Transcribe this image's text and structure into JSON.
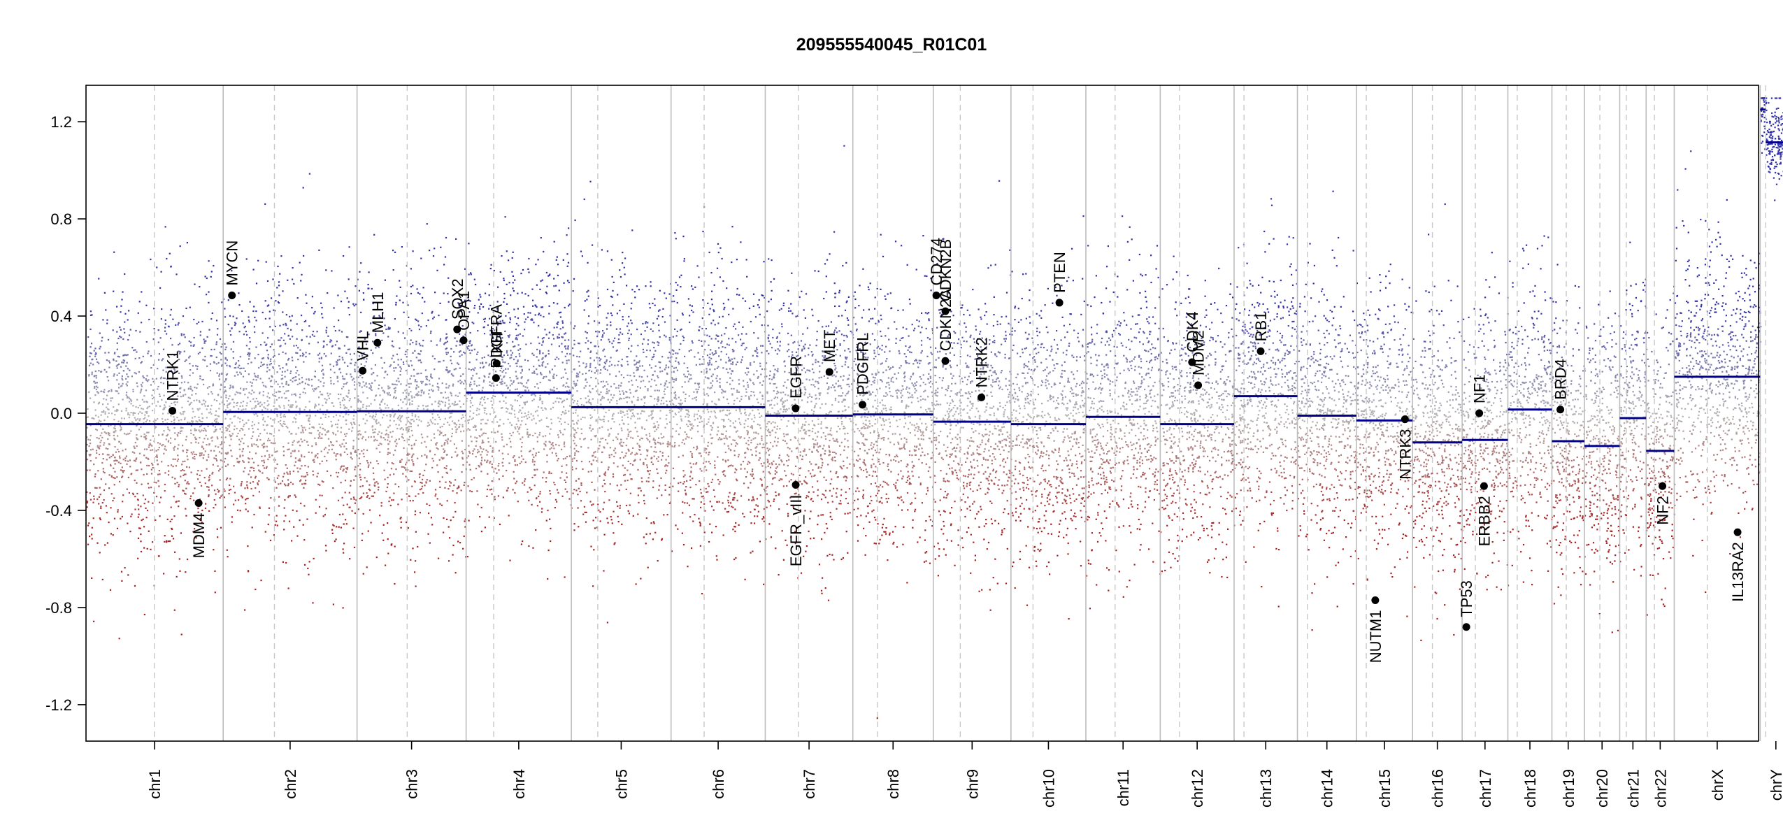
{
  "chart_data": {
    "type": "scatter",
    "title": "209555540045_R01C01",
    "xlabel": "",
    "ylabel": "",
    "ylim": [
      -1.35,
      1.35
    ],
    "yticks": [
      1.2,
      0.8,
      0.4,
      0.0,
      -0.4,
      -0.8,
      -1.2
    ],
    "ytick_labels": [
      "1.2",
      "0.8",
      "0.4",
      "0.0",
      "-0.4",
      "-0.8",
      "-1.2"
    ],
    "grid": false,
    "xlim_mb": [
      0,
      3036
    ],
    "chromosomes": [
      {
        "name": "chr1",
        "length": 249,
        "centromere": 124,
        "segments": [
          {
            "start": 0,
            "end": 249,
            "value": -0.045
          }
        ]
      },
      {
        "name": "chr2",
        "length": 243,
        "centromere": 93,
        "segments": [
          {
            "start": 0,
            "end": 243,
            "value": 0.005
          }
        ]
      },
      {
        "name": "chr3",
        "length": 198,
        "centromere": 91,
        "segments": [
          {
            "start": 0,
            "end": 198,
            "value": 0.008
          }
        ]
      },
      {
        "name": "chr4",
        "length": 191,
        "centromere": 50,
        "segments": [
          {
            "start": 0,
            "end": 191,
            "value": 0.085
          }
        ]
      },
      {
        "name": "chr5",
        "length": 181,
        "centromere": 48,
        "segments": [
          {
            "start": 0,
            "end": 181,
            "value": 0.025
          }
        ]
      },
      {
        "name": "chr6",
        "length": 171,
        "centromere": 60,
        "segments": [
          {
            "start": 0,
            "end": 171,
            "value": 0.025
          }
        ]
      },
      {
        "name": "chr7",
        "length": 159,
        "centromere": 60,
        "segments": [
          {
            "start": 0,
            "end": 159,
            "value": -0.01
          }
        ]
      },
      {
        "name": "chr8",
        "length": 146,
        "centromere": 45,
        "segments": [
          {
            "start": 0,
            "end": 146,
            "value": -0.005
          }
        ]
      },
      {
        "name": "chr9",
        "length": 141,
        "centromere": 49,
        "segments": [
          {
            "start": 0,
            "end": 141,
            "value": -0.035
          }
        ]
      },
      {
        "name": "chr10",
        "length": 136,
        "centromere": 40,
        "segments": [
          {
            "start": 0,
            "end": 136,
            "value": -0.045
          }
        ]
      },
      {
        "name": "chr11",
        "length": 135,
        "centromere": 53,
        "segments": [
          {
            "start": 0,
            "end": 135,
            "value": -0.015
          }
        ]
      },
      {
        "name": "chr12",
        "length": 134,
        "centromere": 35,
        "segments": [
          {
            "start": 0,
            "end": 134,
            "value": -0.045
          }
        ]
      },
      {
        "name": "chr13",
        "length": 115,
        "centromere": 18,
        "segments": [
          {
            "start": 0,
            "end": 115,
            "value": 0.07
          }
        ]
      },
      {
        "name": "chr14",
        "length": 107,
        "centromere": 18,
        "segments": [
          {
            "start": 0,
            "end": 107,
            "value": -0.01
          }
        ]
      },
      {
        "name": "chr15",
        "length": 102,
        "centromere": 18,
        "segments": [
          {
            "start": 0,
            "end": 102,
            "value": -0.03
          }
        ]
      },
      {
        "name": "chr16",
        "length": 90,
        "centromere": 36,
        "segments": [
          {
            "start": 0,
            "end": 90,
            "value": -0.12
          }
        ]
      },
      {
        "name": "chr17",
        "length": 83,
        "centromere": 24,
        "segments": [
          {
            "start": 0,
            "end": 83,
            "value": -0.11
          }
        ]
      },
      {
        "name": "chr18",
        "length": 80,
        "centromere": 17,
        "segments": [
          {
            "start": 0,
            "end": 80,
            "value": 0.015
          }
        ]
      },
      {
        "name": "chr19",
        "length": 59,
        "centromere": 26,
        "segments": [
          {
            "start": 0,
            "end": 59,
            "value": -0.115
          }
        ]
      },
      {
        "name": "chr20",
        "length": 64,
        "centromere": 28,
        "segments": [
          {
            "start": 0,
            "end": 64,
            "value": -0.135
          }
        ]
      },
      {
        "name": "chr21",
        "length": 48,
        "centromere": 12,
        "segments": [
          {
            "start": 0,
            "end": 48,
            "value": -0.02
          }
        ]
      },
      {
        "name": "chr22",
        "length": 51,
        "centromere": 15,
        "segments": [
          {
            "start": 0,
            "end": 51,
            "value": -0.155
          }
        ]
      },
      {
        "name": "chrX",
        "length": 156,
        "centromere": 60,
        "segments": [
          {
            "start": 0,
            "end": 156,
            "value": 0.15
          }
        ]
      },
      {
        "name": "chrY",
        "length": 57,
        "centromere": 10,
        "segments": [
          {
            "start": 0,
            "end": 10,
            "value": 1.25
          },
          {
            "start": 10,
            "end": 57,
            "value": 1.115
          }
        ]
      }
    ],
    "genes": [
      {
        "name": "NTRK1",
        "chrom": "chr1",
        "pos": 156.8,
        "value": 0.01,
        "label_side": "above"
      },
      {
        "name": "MYCN",
        "chrom": "chr2",
        "pos": 15.9,
        "value": 0.485,
        "label_side": "above"
      },
      {
        "name": "MDM4",
        "chrom": "chr1",
        "pos": 204.5,
        "value": -0.37,
        "label_side": "below"
      },
      {
        "name": "PDGFRA",
        "chrom": "chr4",
        "pos": 54.2,
        "value": 0.145,
        "label_side": "above"
      },
      {
        "name": "VHL",
        "chrom": "chr3",
        "pos": 10.1,
        "value": 0.175,
        "label_side": "above"
      },
      {
        "name": "MLH1",
        "chrom": "chr3",
        "pos": 37.0,
        "value": 0.29,
        "label_side": "above"
      },
      {
        "name": "SOX2",
        "chrom": "chr3",
        "pos": 181.7,
        "value": 0.345,
        "label_side": "above"
      },
      {
        "name": "OPA1",
        "chrom": "chr3",
        "pos": 193.4,
        "value": 0.3,
        "label_side": "above"
      },
      {
        "name": "PDGFRL",
        "chrom": "chr8",
        "pos": 17.5,
        "value": 0.035,
        "label_side": "above"
      },
      {
        "name": "KIT",
        "chrom": "chr4",
        "pos": 55.5,
        "value": 0.205,
        "label_side": "above"
      },
      {
        "name": "EGFR",
        "chrom": "chr7",
        "pos": 55.1,
        "value": 0.02,
        "label_side": "above"
      },
      {
        "name": "EGFR_vIII",
        "chrom": "chr7",
        "pos": 55.3,
        "value": -0.295,
        "label_side": "below"
      },
      {
        "name": "MET",
        "chrom": "chr7",
        "pos": 116.5,
        "value": 0.17,
        "label_side": "above"
      },
      {
        "name": "CD274",
        "chrom": "chr9",
        "pos": 5.5,
        "value": 0.485,
        "label_side": "above"
      },
      {
        "name": "CDKN2A",
        "chrom": "chr9",
        "pos": 21.9,
        "value": 0.215,
        "label_side": "above"
      },
      {
        "name": "CDKN2B",
        "chrom": "chr9",
        "pos": 22.0,
        "value": 0.42,
        "label_side": "above"
      },
      {
        "name": "NTRK2",
        "chrom": "chr9",
        "pos": 87.3,
        "value": 0.065,
        "label_side": "above"
      },
      {
        "name": "PTEN",
        "chrom": "chr10",
        "pos": 87.9,
        "value": 0.455,
        "label_side": "above"
      },
      {
        "name": "CDK4",
        "chrom": "chr12",
        "pos": 57.7,
        "value": 0.21,
        "label_side": "above"
      },
      {
        "name": "MDM2",
        "chrom": "chr12",
        "pos": 68.8,
        "value": 0.115,
        "label_side": "above"
      },
      {
        "name": "RB1",
        "chrom": "chr13",
        "pos": 48.3,
        "value": 0.255,
        "label_side": "above"
      },
      {
        "name": "NUTM1",
        "chrom": "chr15",
        "pos": 34.3,
        "value": -0.77,
        "label_side": "below"
      },
      {
        "name": "NTRK3",
        "chrom": "chr15",
        "pos": 88.2,
        "value": -0.025,
        "label_side": "below"
      },
      {
        "name": "TP53",
        "chrom": "chr17",
        "pos": 7.6,
        "value": -0.88,
        "label_side": "above"
      },
      {
        "name": "NF1",
        "chrom": "chr17",
        "pos": 31.1,
        "value": 0.0,
        "label_side": "above"
      },
      {
        "name": "ERBB2",
        "chrom": "chr17",
        "pos": 39.7,
        "value": -0.3,
        "label_side": "below"
      },
      {
        "name": "BRD4",
        "chrom": "chr19",
        "pos": 15.3,
        "value": 0.015,
        "label_side": "above"
      },
      {
        "name": "NF2",
        "chrom": "chr22",
        "pos": 29.6,
        "value": -0.3,
        "label_side": "below"
      },
      {
        "name": "IL13RA2",
        "chrom": "chrX",
        "pos": 115.0,
        "value": -0.49,
        "label_side": "below"
      }
    ],
    "colors": {
      "gain": "#3030a8",
      "neutral": "#b4b4b4",
      "loss": "#a82020",
      "segment": "#00008b",
      "chrom_boundary": "#bdbdbd",
      "centromere": "#c8c8c8",
      "gene_point": "#000000"
    }
  }
}
